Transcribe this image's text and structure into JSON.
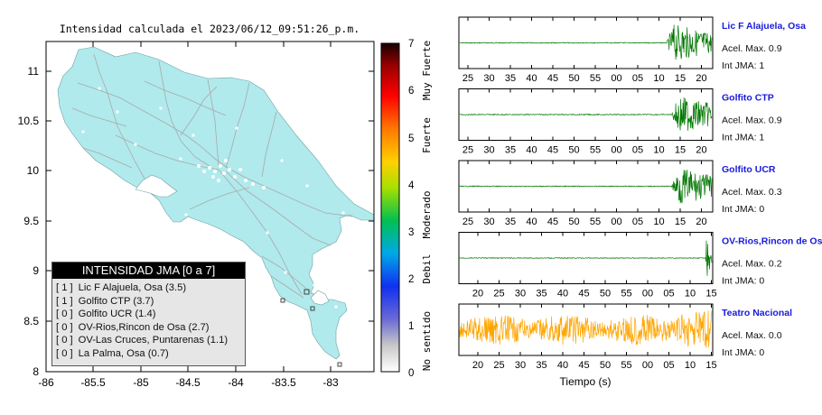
{
  "map": {
    "title": "Intensidad calculada el 2023/06/12_09:51:26_p.m.",
    "x_ticks": [
      "-86",
      "-85.5",
      "-85",
      "-84.5",
      "-84",
      "-83.5",
      "-83"
    ],
    "y_ticks": [
      "11",
      "10.5",
      "10",
      "9.5",
      "9",
      "8.5",
      "8"
    ],
    "land_color": "#b0eaec",
    "legend": {
      "header": "INTENSIDAD JMA [0 a 7]",
      "items": [
        {
          "jma": "[ 1 ]",
          "label": "Lic F Alajuela, Osa (3.5)"
        },
        {
          "jma": "[ 1 ]",
          "label": "Golfito CTP (3.7)"
        },
        {
          "jma": "[ 0 ]",
          "label": "Golfito UCR (1.4)"
        },
        {
          "jma": "[ 0 ]",
          "label": "OV-Rios,Rincon de Osa (2.7)"
        },
        {
          "jma": "[ 0 ]",
          "label": "OV-Las Cruces, Puntarenas (1.1)"
        },
        {
          "jma": "[ 0 ]",
          "label": "La Palma, Osa (0.7)"
        }
      ]
    }
  },
  "colorbar": {
    "ticks": [
      "7",
      "6",
      "5",
      "4",
      "3",
      "2",
      "1",
      "0"
    ],
    "labels": [
      "Muy Fuerte",
      "Fuerte",
      "Moderado",
      "Debil",
      "No sentido"
    ]
  },
  "traces": {
    "xlabel": "Tiempo (s)",
    "items": [
      {
        "station": "Lic F Alajuela, Osa",
        "acel": "Acel. Max. 0.9",
        "int": "Int JMA: 1",
        "color": "#007700",
        "ticks": [
          "25",
          "30",
          "35",
          "40",
          "45",
          "50",
          "55",
          "00",
          "05",
          "10",
          "15",
          "20"
        ]
      },
      {
        "station": "Golfito CTP",
        "acel": "Acel. Max. 0.9",
        "int": "Int JMA: 1",
        "color": "#007700",
        "ticks": [
          "25",
          "30",
          "35",
          "40",
          "45",
          "50",
          "55",
          "00",
          "05",
          "10",
          "15",
          "20"
        ]
      },
      {
        "station": "Golfito UCR",
        "acel": "Acel. Max. 0.3",
        "int": "Int JMA: 0",
        "color": "#007700",
        "ticks": [
          "25",
          "30",
          "35",
          "40",
          "45",
          "50",
          "55",
          "00",
          "05",
          "10",
          "15",
          "20"
        ]
      },
      {
        "station": "OV-Rios,Rincon de Osa",
        "acel": "Acel. Max. 0.2",
        "int": "Int JMA: 0",
        "color": "#007700",
        "ticks": [
          "20",
          "25",
          "30",
          "35",
          "40",
          "45",
          "50",
          "55",
          "00",
          "05",
          "10",
          "15"
        ]
      },
      {
        "station": "Teatro Nacional",
        "acel": "Acel. Max. 0.0",
        "int": "Int JMA: 0",
        "color": "#ffa500",
        "ticks": [
          "20",
          "25",
          "30",
          "35",
          "40",
          "45",
          "50",
          "55",
          "00",
          "05",
          "10",
          "15"
        ]
      }
    ]
  },
  "chart_data": [
    {
      "type": "scatter",
      "title": "Intensidad calculada el 2023/06/12_09:51:26_p.m.",
      "xlabel": "",
      "ylabel": "",
      "xlim": [
        -86,
        -82.55
      ],
      "ylim": [
        8,
        11.35
      ],
      "grid": false
    },
    {
      "type": "line",
      "title": "",
      "xlabel": "Tiempo (s)",
      "ylabel": "",
      "series": [
        {
          "name": "Lic F Alajuela, Osa",
          "peak": 0.9
        },
        {
          "name": "Golfito CTP",
          "peak": 0.9
        },
        {
          "name": "Golfito UCR",
          "peak": 0.3
        },
        {
          "name": "OV-Rios,Rincon de Osa",
          "peak": 0.2
        },
        {
          "name": "Teatro Nacional",
          "peak": 0.0
        }
      ]
    }
  ]
}
